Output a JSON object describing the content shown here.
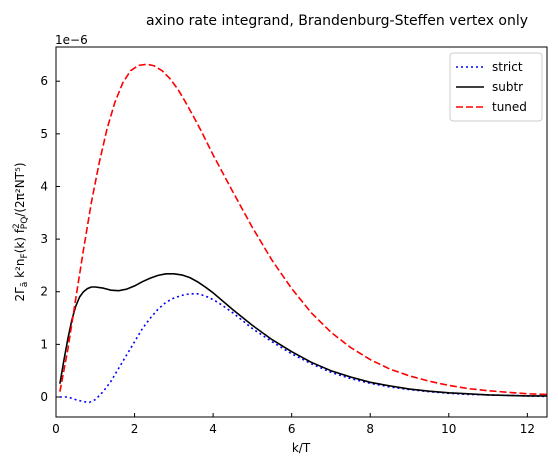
{
  "chart_data": {
    "type": "line",
    "title": "axino rate integrand, Brandenburg-Steffen vertex only",
    "xlabel": "k/T",
    "ylabel_main": "2Γ",
    "ylabel_sub": "ã",
    "ylabel_rest": " k²n",
    "ylabel_F": "F",
    "ylabel_rest2": "(k) f",
    "ylabel_sup": "2",
    "ylabel_sub2": "PQ",
    "ylabel_tail": "/(2π²NT⁵)",
    "y_offset_label": "1e−6",
    "xlim": [
      0,
      12.5
    ],
    "ylim": [
      -0.38,
      6.65
    ],
    "xticks": [
      0,
      2,
      4,
      6,
      8,
      10,
      12
    ],
    "xtick_labels": [
      "0",
      "2",
      "4",
      "6",
      "8",
      "10",
      "12"
    ],
    "yticks": [
      0,
      1,
      2,
      3,
      4,
      5,
      6
    ],
    "ytick_labels": [
      "0",
      "1",
      "2",
      "3",
      "4",
      "5",
      "6"
    ],
    "grid": false,
    "legend_position": "top-right",
    "series": [
      {
        "name": "strict",
        "color": "#0000ff",
        "style": "dotted",
        "x": [
          0.1,
          0.3,
          0.5,
          0.7,
          0.85,
          1.0,
          1.2,
          1.4,
          1.6,
          1.8,
          2.0,
          2.2,
          2.4,
          2.6,
          2.8,
          3.0,
          3.2,
          3.4,
          3.6,
          3.8,
          4.0,
          4.2,
          4.5,
          5.0,
          5.5,
          6.0,
          6.5,
          7.0,
          7.5,
          8.0,
          8.5,
          9.0,
          9.5,
          10.0,
          10.5,
          11.0,
          11.5,
          12.0,
          12.5
        ],
        "y": [
          0.0,
          0.0,
          -0.05,
          -0.09,
          -0.1,
          -0.05,
          0.1,
          0.3,
          0.55,
          0.8,
          1.05,
          1.3,
          1.5,
          1.67,
          1.8,
          1.88,
          1.93,
          1.96,
          1.96,
          1.92,
          1.85,
          1.76,
          1.6,
          1.3,
          1.05,
          0.82,
          0.63,
          0.47,
          0.35,
          0.26,
          0.19,
          0.14,
          0.1,
          0.07,
          0.05,
          0.04,
          0.03,
          0.02,
          0.01
        ]
      },
      {
        "name": "subtr",
        "color": "#000000",
        "style": "solid",
        "x": [
          0.1,
          0.2,
          0.3,
          0.4,
          0.5,
          0.6,
          0.7,
          0.8,
          0.9,
          1.0,
          1.2,
          1.4,
          1.6,
          1.8,
          2.0,
          2.2,
          2.4,
          2.6,
          2.8,
          3.0,
          3.2,
          3.4,
          3.6,
          3.8,
          4.0,
          4.5,
          5.0,
          5.5,
          6.0,
          6.5,
          7.0,
          7.5,
          8.0,
          8.5,
          9.0,
          9.5,
          10.0,
          10.5,
          11.0,
          11.5,
          12.0,
          12.5
        ],
        "y": [
          0.25,
          0.7,
          1.1,
          1.45,
          1.72,
          1.9,
          2.0,
          2.06,
          2.09,
          2.09,
          2.07,
          2.03,
          2.02,
          2.05,
          2.11,
          2.19,
          2.26,
          2.31,
          2.34,
          2.34,
          2.32,
          2.27,
          2.19,
          2.09,
          1.98,
          1.66,
          1.36,
          1.09,
          0.86,
          0.66,
          0.5,
          0.38,
          0.28,
          0.21,
          0.15,
          0.11,
          0.08,
          0.06,
          0.04,
          0.03,
          0.02,
          0.02
        ]
      },
      {
        "name": "tuned",
        "color": "#ff0000",
        "style": "dashed",
        "x": [
          0.1,
          0.3,
          0.5,
          0.7,
          0.9,
          1.1,
          1.3,
          1.5,
          1.7,
          1.9,
          2.1,
          2.3,
          2.4,
          2.5,
          2.7,
          2.9,
          3.1,
          3.3,
          3.5,
          3.7,
          4.0,
          4.5,
          5.0,
          5.5,
          6.0,
          6.5,
          7.0,
          7.5,
          8.0,
          8.5,
          9.0,
          9.5,
          10.0,
          10.5,
          11.0,
          11.5,
          12.0,
          12.5
        ],
        "y": [
          0.1,
          0.9,
          1.85,
          2.8,
          3.7,
          4.45,
          5.1,
          5.6,
          5.97,
          6.2,
          6.3,
          6.32,
          6.31,
          6.29,
          6.2,
          6.05,
          5.85,
          5.6,
          5.33,
          5.05,
          4.6,
          3.9,
          3.22,
          2.6,
          2.06,
          1.6,
          1.23,
          0.94,
          0.71,
          0.53,
          0.4,
          0.3,
          0.22,
          0.16,
          0.12,
          0.09,
          0.06,
          0.05
        ]
      }
    ]
  }
}
